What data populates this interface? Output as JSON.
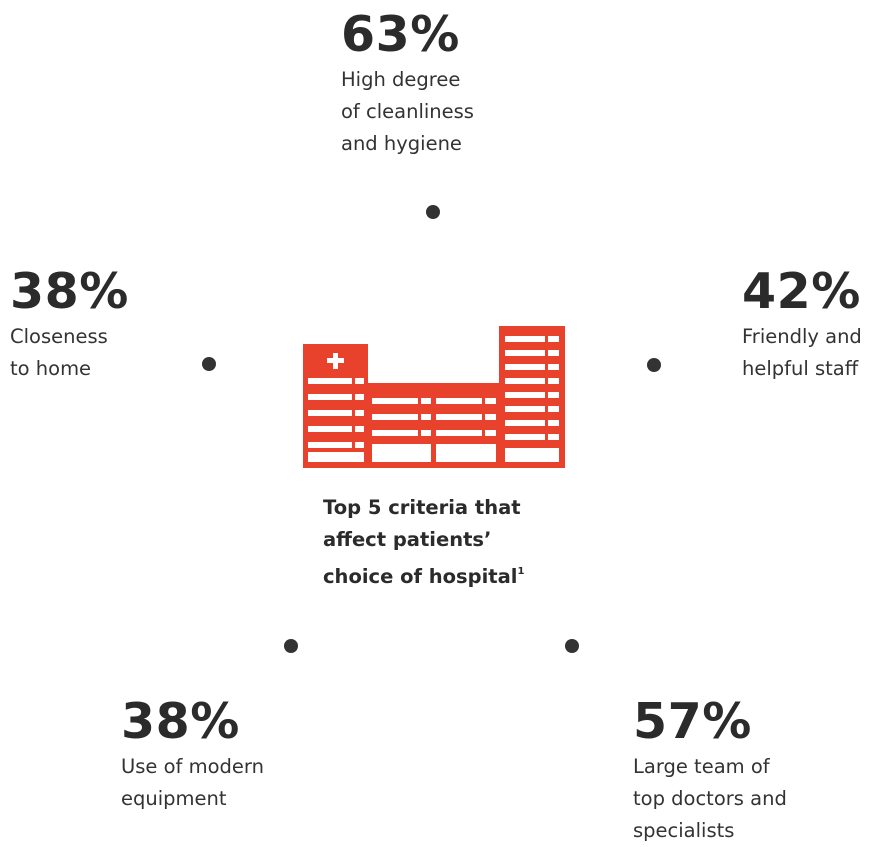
{
  "chart_data": {
    "type": "radial-infographic",
    "title_lines": [
      "Top 5 criteria that",
      "affect patients’",
      "choice of hospital"
    ],
    "footnote_marker": "1",
    "categories": [
      "High degree of cleanliness and hygiene",
      "Friendly and helpful staff",
      "Large team of top doctors and specialists",
      "Use of modern equipment",
      "Closeness to home"
    ],
    "values": [
      63,
      42,
      57,
      38,
      38
    ],
    "unit": "%",
    "items": [
      {
        "value_label": "63%",
        "lines": [
          "High degree",
          "of cleanliness",
          "and hygiene"
        ]
      },
      {
        "value_label": "42%",
        "lines": [
          "Friendly and",
          "helpful staff"
        ]
      },
      {
        "value_label": "57%",
        "lines": [
          "Large team of",
          "top doctors and",
          "specialists"
        ]
      },
      {
        "value_label": "38%",
        "lines": [
          "Use of modern",
          "equipment"
        ]
      },
      {
        "value_label": "38%",
        "lines": [
          "Closeness",
          "to home"
        ]
      }
    ]
  },
  "colors": {
    "accent": "#e8412c",
    "text": "#333333",
    "dot": "#333333"
  },
  "icons": {
    "center": "hospital-building-icon"
  }
}
